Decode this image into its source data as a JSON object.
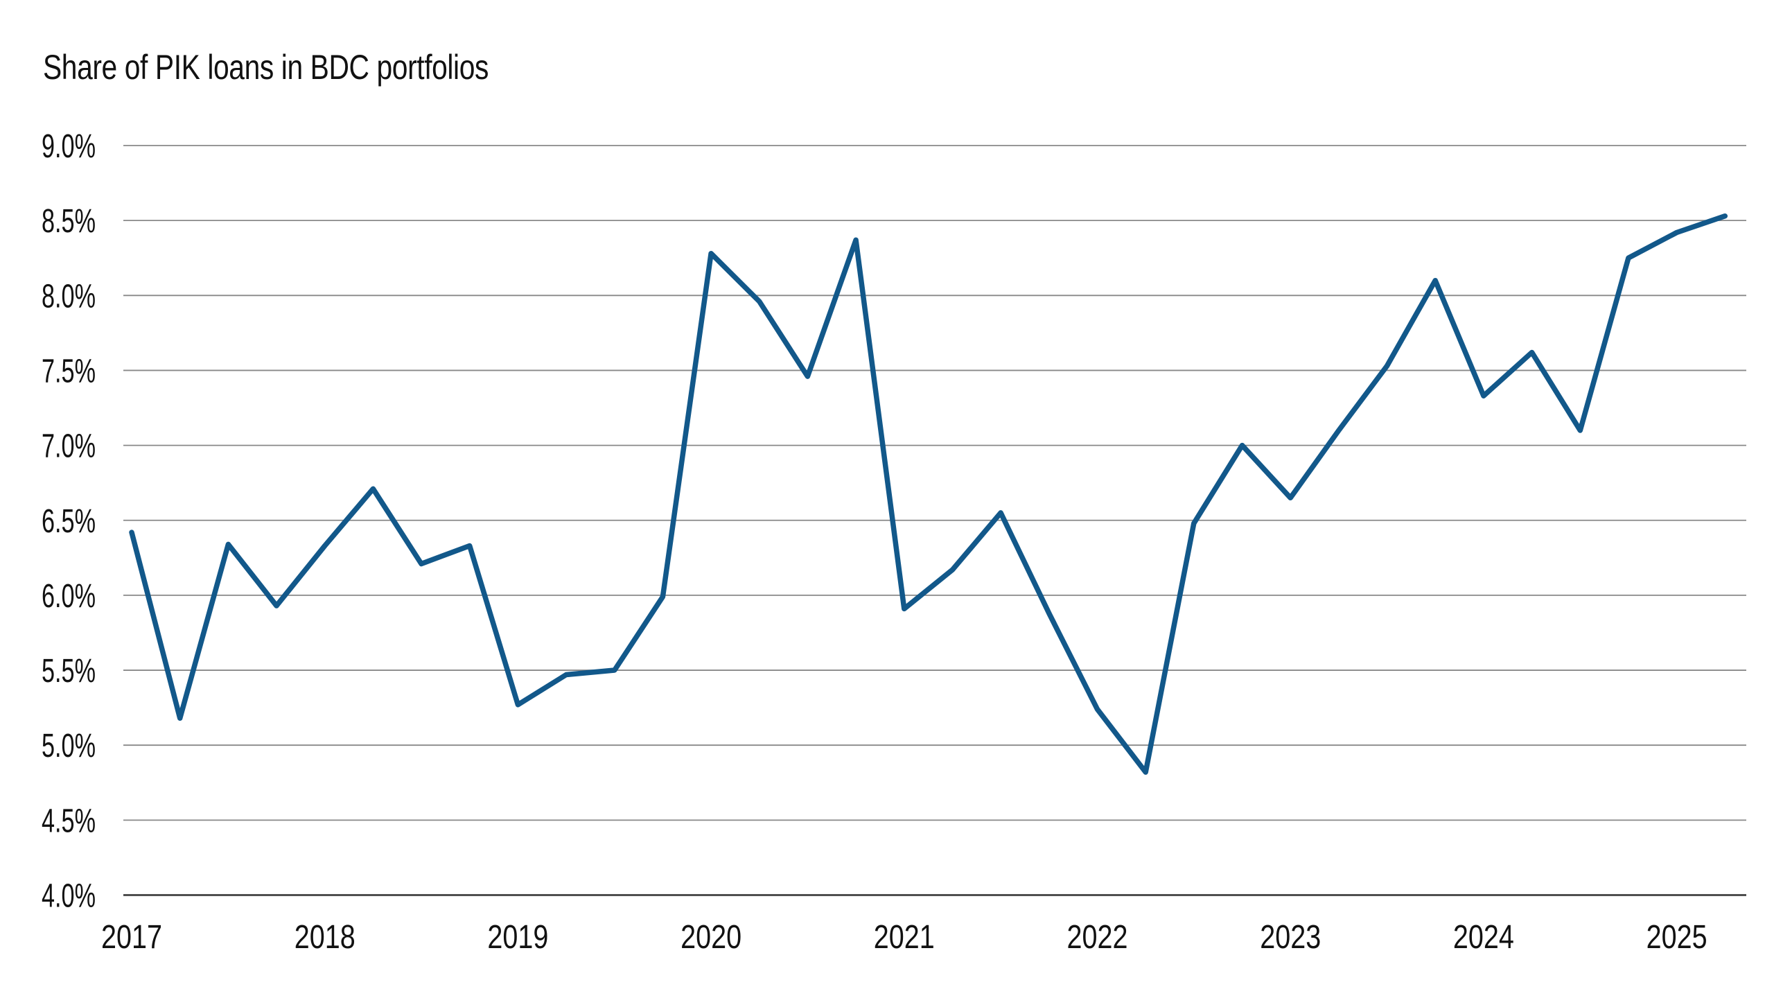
{
  "colors": {
    "line": "#12588a",
    "grid": "#888888",
    "axis": "#4f4f4f",
    "text": "#111111",
    "background": "#ffffff"
  },
  "chart_data": {
    "type": "line",
    "title": "Share of PIK loans in BDC portfolios",
    "series_name": "Share of PIK loans in BDC portfolios",
    "x": [
      2017.0,
      2017.25,
      2017.5,
      2017.75,
      2018.0,
      2018.25,
      2018.5,
      2018.75,
      2019.0,
      2019.25,
      2019.5,
      2019.75,
      2020.0,
      2020.25,
      2020.5,
      2020.75,
      2021.0,
      2021.25,
      2021.5,
      2021.75,
      2022.0,
      2022.25,
      2022.5,
      2022.75,
      2023.0,
      2023.25,
      2023.5,
      2023.75,
      2024.0,
      2024.25,
      2024.5,
      2024.75,
      2025.0,
      2025.25
    ],
    "values": [
      6.42,
      5.18,
      6.34,
      5.93,
      6.33,
      6.71,
      6.21,
      6.33,
      5.27,
      5.47,
      5.5,
      5.99,
      8.28,
      7.96,
      7.46,
      8.37,
      5.91,
      6.17,
      6.55,
      5.88,
      5.24,
      4.82,
      6.48,
      7.0,
      6.65,
      7.1,
      7.53,
      8.1,
      7.33,
      7.62,
      7.1,
      8.25,
      8.42,
      8.53
    ],
    "ylim": [
      4.0,
      9.0
    ],
    "xlabel": "",
    "ylabel": "",
    "grid": true,
    "legend": false,
    "yticks": [
      {
        "value": 9.0,
        "label": "9.0%"
      },
      {
        "value": 8.5,
        "label": "8.5%"
      },
      {
        "value": 8.0,
        "label": "8.0%"
      },
      {
        "value": 7.5,
        "label": "7.5%"
      },
      {
        "value": 7.0,
        "label": "7.0%"
      },
      {
        "value": 6.5,
        "label": "6.5%"
      },
      {
        "value": 6.0,
        "label": "6.0%"
      },
      {
        "value": 5.5,
        "label": "5.5%"
      },
      {
        "value": 5.0,
        "label": "5.0%"
      },
      {
        "value": 4.5,
        "label": "4.5%"
      },
      {
        "value": 4.0,
        "label": "4.0%"
      }
    ],
    "xticks": [
      {
        "value": 2017,
        "label": "2017"
      },
      {
        "value": 2018,
        "label": "2018"
      },
      {
        "value": 2019,
        "label": "2019"
      },
      {
        "value": 2020,
        "label": "2020"
      },
      {
        "value": 2021,
        "label": "2021"
      },
      {
        "value": 2022,
        "label": "2022"
      },
      {
        "value": 2023,
        "label": "2023"
      },
      {
        "value": 2024,
        "label": "2024"
      },
      {
        "value": 2025,
        "label": "2025"
      }
    ]
  }
}
